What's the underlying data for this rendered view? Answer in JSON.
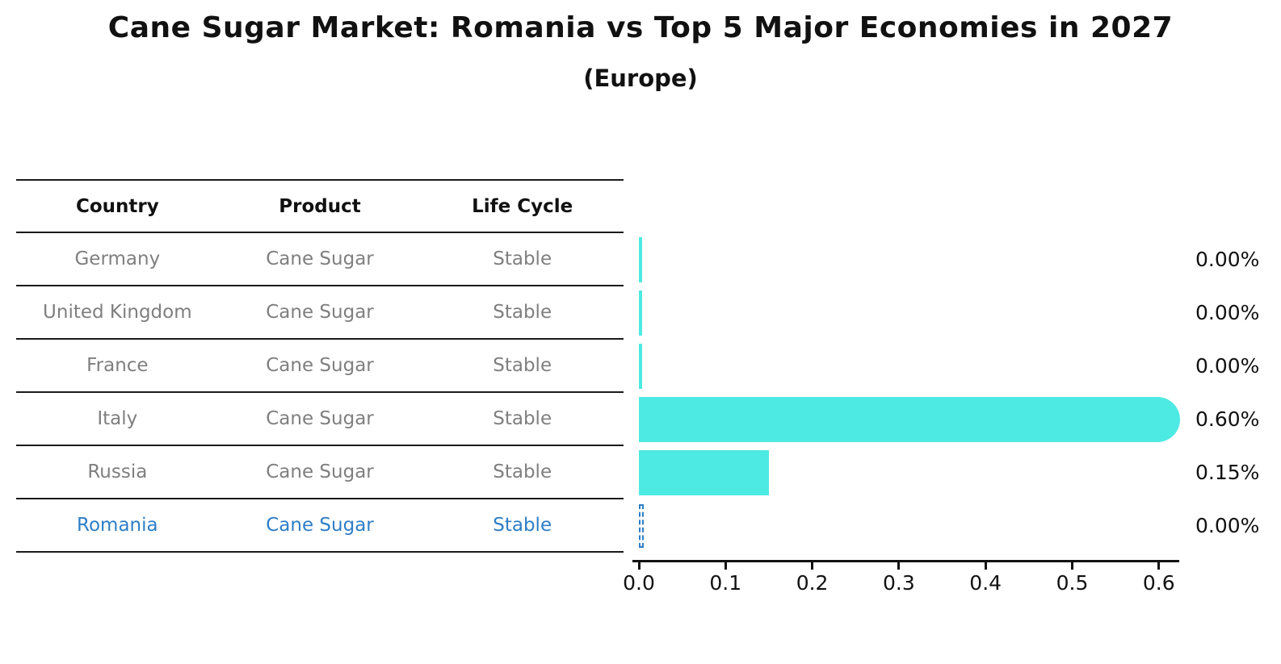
{
  "figure": {
    "title": "Cane Sugar Market: Romania vs Top 5 Major Economies in 2027",
    "subtitle": "(Europe)"
  },
  "table": {
    "columns": [
      "Country",
      "Product",
      "Life Cycle"
    ],
    "rows": [
      {
        "country": "Germany",
        "product": "Cane Sugar",
        "life_cycle": "Stable",
        "highlighted": false
      },
      {
        "country": "United Kingdom",
        "product": "Cane Sugar",
        "life_cycle": "Stable",
        "highlighted": false
      },
      {
        "country": "France",
        "product": "Cane Sugar",
        "life_cycle": "Stable",
        "highlighted": false
      },
      {
        "country": "Italy",
        "product": "Cane Sugar",
        "life_cycle": "Stable",
        "highlighted": false
      },
      {
        "country": "Russia",
        "product": "Cane Sugar",
        "life_cycle": "Stable",
        "highlighted": false
      },
      {
        "country": "Romania",
        "product": "Cane Sugar",
        "life_cycle": "Stable",
        "highlighted": true
      }
    ]
  },
  "chart_data": {
    "type": "bar",
    "orientation": "horizontal",
    "title": "Cane Sugar Market: Romania vs Top 5 Major Economies in 2027",
    "subtitle": "(Europe)",
    "categories": [
      "Germany",
      "United Kingdom",
      "France",
      "Italy",
      "Russia",
      "Romania"
    ],
    "values": [
      0.0,
      0.0,
      0.0,
      0.6,
      0.15,
      0.0
    ],
    "value_labels": [
      "0.00%",
      "0.00%",
      "0.00%",
      "0.60%",
      "0.15%",
      "0.00%"
    ],
    "x_ticks": [
      0.0,
      0.1,
      0.2,
      0.3,
      0.4,
      0.5,
      0.6
    ],
    "x_tick_labels": [
      "0.0",
      "0.1",
      "0.2",
      "0.3",
      "0.4",
      "0.5",
      "0.6"
    ],
    "xlim": [
      0,
      0.63
    ],
    "grid": false,
    "legend": false,
    "bar_color": "#4DE9E3",
    "highlight_index": 5,
    "highlight_color": "#2E7EC6"
  },
  "colors": {
    "background": "#ffffff",
    "row_text": "#7f7f7f",
    "header_text": "#111111",
    "axis": "#111111"
  }
}
